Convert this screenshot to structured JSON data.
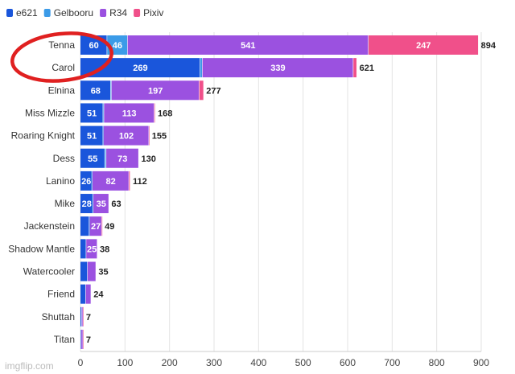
{
  "chart_data": {
    "type": "bar",
    "orientation": "horizontal",
    "stacked": true,
    "title": "",
    "xlabel": "",
    "ylabel": "",
    "xlim": [
      0,
      900
    ],
    "x_ticks": [
      0,
      100,
      200,
      300,
      400,
      500,
      600,
      700,
      800,
      900
    ],
    "grid": "vertical",
    "legend_position": "top-left",
    "categories": [
      "Tenna",
      "Carol",
      "Elnina",
      "Miss Mizzle",
      "Roaring Knight",
      "Dess",
      "Lanino",
      "Mike",
      "Jackenstein",
      "Shadow Mantle",
      "Watercooler",
      "Friend",
      "Shuttah",
      "Titan"
    ],
    "series": [
      {
        "name": "e621",
        "color": "#1a56db",
        "values": [
          60,
          269,
          68,
          51,
          51,
          55,
          26,
          28,
          20,
          13,
          16,
          12,
          3,
          2
        ]
      },
      {
        "name": "Gelbooru",
        "color": "#3b9be8",
        "values": [
          46,
          5,
          2,
          2,
          1,
          3,
          1,
          1,
          1,
          0,
          0,
          0,
          0,
          0
        ]
      },
      {
        "name": "R34",
        "color": "#9b51e0",
        "values": [
          541,
          339,
          197,
          113,
          102,
          73,
          82,
          35,
          27,
          25,
          19,
          12,
          3,
          4
        ]
      },
      {
        "name": "Pixiv",
        "color": "#f0508a",
        "values": [
          247,
          8,
          10,
          2,
          1,
          0,
          3,
          0,
          1,
          0,
          0,
          0,
          1,
          1
        ]
      }
    ],
    "data_labels": {
      "e621": [
        60,
        269,
        68,
        51,
        51,
        55,
        26,
        28,
        null,
        null,
        null,
        null,
        null,
        null
      ],
      "Gelbooru": [
        46,
        null,
        null,
        null,
        null,
        null,
        null,
        null,
        null,
        null,
        null,
        null,
        null,
        null
      ],
      "R34": [
        541,
        339,
        197,
        113,
        102,
        73,
        82,
        35,
        27,
        25,
        null,
        null,
        null,
        null
      ],
      "Pixiv": [
        247,
        null,
        null,
        null,
        null,
        null,
        null,
        null,
        null,
        null,
        null,
        null,
        null,
        null
      ]
    },
    "totals": [
      894,
      621,
      277,
      168,
      155,
      130,
      112,
      63,
      49,
      38,
      35,
      24,
      7,
      7
    ],
    "annotation": {
      "type": "circle",
      "target": "Tenna",
      "color": "#e02020"
    }
  },
  "watermark": "imgflip.com"
}
